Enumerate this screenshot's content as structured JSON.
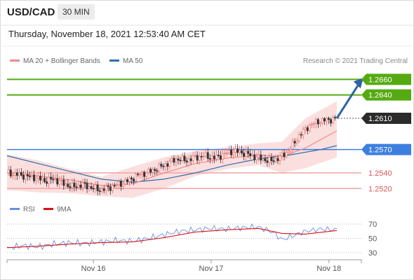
{
  "header": {
    "pair": "USD/CAD",
    "timeframe": "30 MIN",
    "datetime": "Thursday, November 18, 2021 12:53:40 AM CET"
  },
  "legend": {
    "ma20": "MA 20 + Bollinger Bands",
    "ma50": "MA 50",
    "credit": "Research © 2021 Trading Central",
    "rsi": "RSI",
    "ma9": "9MA"
  },
  "colors": {
    "up": "#e8706c",
    "down": "#333333",
    "ma20": "#f08a8a",
    "ma50": "#2b6fa8",
    "bands": "#f9d4d4",
    "green": "#55aa11",
    "blue": "#3d7fe0",
    "red": "#e05555",
    "current": "#2b2b2b",
    "arrow": "#2e62a6"
  },
  "chart_data": [
    {
      "type": "candlestick",
      "ylim": [
        1.2505,
        1.2672
      ],
      "x_labels": [
        "Nov 16",
        "Nov 17",
        "Nov 18"
      ],
      "levels": [
        {
          "value": 1.266,
          "label": "1.2660",
          "kind": "resistance"
        },
        {
          "value": 1.264,
          "label": "1.2640",
          "kind": "resistance"
        },
        {
          "value": 1.261,
          "label": "1.2610",
          "kind": "current"
        },
        {
          "value": 1.257,
          "label": "1.2570",
          "kind": "pivot"
        },
        {
          "value": 1.254,
          "label": "1.2540",
          "kind": "support"
        },
        {
          "value": 1.252,
          "label": "1.2520",
          "kind": "support"
        }
      ],
      "price_path": [
        [
          0,
          1.254
        ],
        [
          6,
          1.2538
        ],
        [
          12,
          1.2536
        ],
        [
          18,
          1.2534
        ],
        [
          24,
          1.253
        ],
        [
          30,
          1.2532
        ],
        [
          36,
          1.2526
        ],
        [
          42,
          1.2522
        ],
        [
          48,
          1.2525
        ],
        [
          54,
          1.2521
        ],
        [
          60,
          1.2518
        ],
        [
          66,
          1.2522
        ],
        [
          72,
          1.2526
        ],
        [
          78,
          1.2531
        ],
        [
          84,
          1.2538
        ],
        [
          90,
          1.2541
        ],
        [
          96,
          1.2546
        ],
        [
          102,
          1.2552
        ],
        [
          108,
          1.2558
        ],
        [
          114,
          1.2556
        ],
        [
          120,
          1.256
        ],
        [
          126,
          1.2562
        ],
        [
          132,
          1.2559
        ],
        [
          138,
          1.2564
        ],
        [
          144,
          1.2568
        ],
        [
          150,
          1.2566
        ],
        [
          156,
          1.2562
        ],
        [
          162,
          1.2558
        ],
        [
          168,
          1.2555
        ],
        [
          174,
          1.256
        ],
        [
          180,
          1.257
        ],
        [
          186,
          1.2588
        ],
        [
          192,
          1.26
        ],
        [
          198,
          1.2606
        ],
        [
          204,
          1.2608
        ],
        [
          210,
          1.261
        ]
      ],
      "ma20_path": [
        [
          0,
          1.254
        ],
        [
          20,
          1.2536
        ],
        [
          40,
          1.2531
        ],
        [
          60,
          1.2524
        ],
        [
          80,
          1.2526
        ],
        [
          100,
          1.254
        ],
        [
          120,
          1.2552
        ],
        [
          140,
          1.2559
        ],
        [
          160,
          1.2563
        ],
        [
          175,
          1.2561
        ],
        [
          190,
          1.2572
        ],
        [
          210,
          1.2594
        ]
      ],
      "ma50_path": [
        [
          0,
          1.2562
        ],
        [
          20,
          1.2552
        ],
        [
          40,
          1.2542
        ],
        [
          60,
          1.2532
        ],
        [
          80,
          1.2528
        ],
        [
          100,
          1.2532
        ],
        [
          120,
          1.254
        ],
        [
          140,
          1.255
        ],
        [
          160,
          1.2558
        ],
        [
          180,
          1.2563
        ],
        [
          200,
          1.257
        ],
        [
          210,
          1.2575
        ]
      ],
      "bb_upper": [
        [
          0,
          1.2564
        ],
        [
          20,
          1.2556
        ],
        [
          40,
          1.2545
        ],
        [
          60,
          1.2535
        ],
        [
          80,
          1.2548
        ],
        [
          100,
          1.256
        ],
        [
          120,
          1.2568
        ],
        [
          140,
          1.2573
        ],
        [
          160,
          1.2578
        ],
        [
          175,
          1.258
        ],
        [
          190,
          1.261
        ],
        [
          210,
          1.2632
        ]
      ],
      "bb_lower": [
        [
          0,
          1.2518
        ],
        [
          20,
          1.2515
        ],
        [
          40,
          1.2514
        ],
        [
          60,
          1.251
        ],
        [
          80,
          1.2508
        ],
        [
          100,
          1.252
        ],
        [
          120,
          1.2536
        ],
        [
          140,
          1.2545
        ],
        [
          160,
          1.255
        ],
        [
          175,
          1.254
        ],
        [
          190,
          1.2546
        ],
        [
          210,
          1.256
        ]
      ],
      "projection": [
        [
          210,
          1.261
        ],
        [
          226,
          1.266
        ]
      ]
    },
    {
      "type": "line",
      "ylim": [
        25,
        78
      ],
      "yticks": [
        70,
        50,
        30
      ],
      "series": [
        {
          "name": "RSI",
          "values": [
            [
              0,
              36
            ],
            [
              10,
              40
            ],
            [
              20,
              38
            ],
            [
              30,
              42
            ],
            [
              40,
              44
            ],
            [
              50,
              43
            ],
            [
              60,
              45
            ],
            [
              70,
              47
            ],
            [
              80,
              46
            ],
            [
              90,
              50
            ],
            [
              100,
              55
            ],
            [
              110,
              60
            ],
            [
              120,
              62
            ],
            [
              130,
              64
            ],
            [
              140,
              63
            ],
            [
              150,
              65
            ],
            [
              160,
              66
            ],
            [
              170,
              58
            ],
            [
              175,
              48
            ],
            [
              180,
              52
            ],
            [
              190,
              60
            ],
            [
              200,
              63
            ],
            [
              210,
              62
            ]
          ]
        },
        {
          "name": "9MA",
          "values": [
            [
              0,
              37
            ],
            [
              20,
              39
            ],
            [
              40,
              42
            ],
            [
              60,
              44
            ],
            [
              80,
              45
            ],
            [
              100,
              51
            ],
            [
              120,
              59
            ],
            [
              140,
              62
            ],
            [
              160,
              64
            ],
            [
              175,
              57
            ],
            [
              190,
              56
            ],
            [
              210,
              61
            ]
          ]
        }
      ]
    }
  ]
}
